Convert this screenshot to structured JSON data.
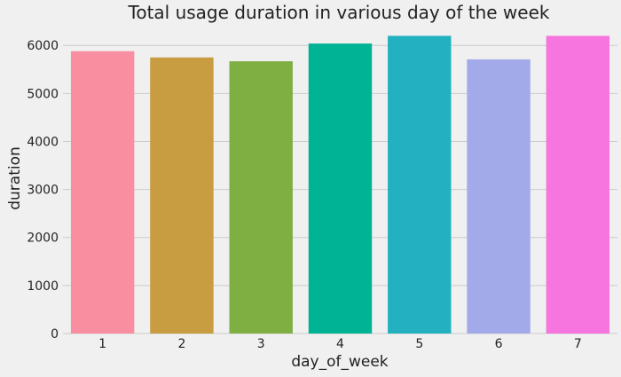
{
  "chart_data": {
    "type": "bar",
    "title": "Total usage duration in various day of the week",
    "xlabel": "day_of_week",
    "ylabel": "duration",
    "categories": [
      "1",
      "2",
      "3",
      "4",
      "5",
      "6",
      "7"
    ],
    "values": [
      5880,
      5750,
      5670,
      6040,
      6200,
      5710,
      6200
    ],
    "colors": [
      "#f98ea0",
      "#c89c40",
      "#7faf43",
      "#00b394",
      "#23b1c1",
      "#a3aaea",
      "#f775df"
    ],
    "ylim": [
      0,
      6300
    ],
    "yticks": [
      0,
      1000,
      2000,
      3000,
      4000,
      5000,
      6000
    ],
    "grid": true,
    "background": "#f0f0f0"
  }
}
